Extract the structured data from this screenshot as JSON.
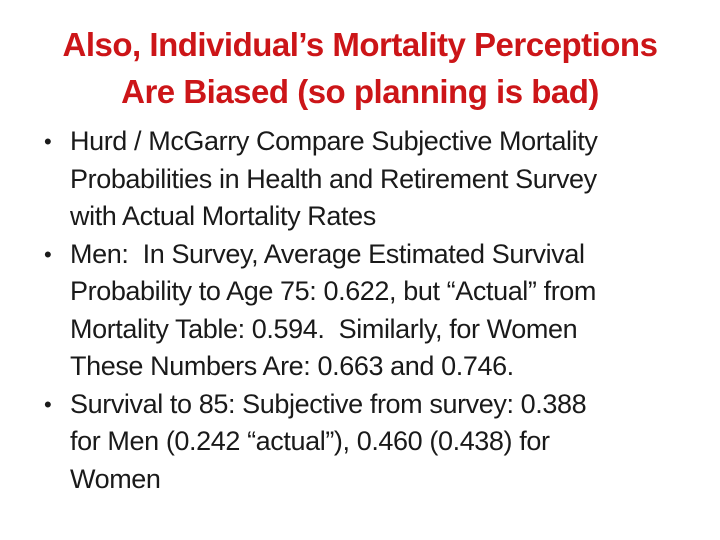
{
  "slide": {
    "background_color": "#ffffff",
    "title_color": "#cc1518",
    "body_color": "#1a1a1a",
    "bullet_glyph": "•",
    "title_lines": [
      "Also, Individual’s Mortality Perceptions",
      "Are Biased (so planning is bad)"
    ],
    "bullets": [
      {
        "lines": [
          "Hurd / McGarry Compare Subjective Mortality",
          "Probabilities in Health and Retirement Survey",
          "with Actual Mortality Rates"
        ]
      },
      {
        "lines": [
          "Men:  In Survey, Average Estimated Survival",
          "Probability to Age 75: 0.622, but “Actual” from",
          "Mortality Table: 0.594.  Similarly, for Women",
          "These Numbers Are: 0.663 and 0.746."
        ]
      },
      {
        "lines": [
          "Survival to 85: Subjective from survey: 0.388",
          "for Men (0.242 “actual”), 0.460 (0.438) for",
          "Women"
        ]
      }
    ]
  }
}
